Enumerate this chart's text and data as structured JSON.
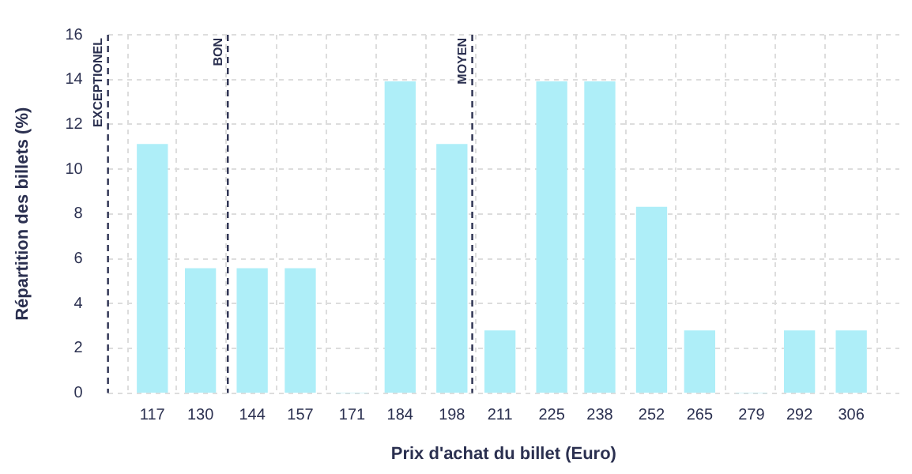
{
  "chart_data": {
    "type": "bar",
    "xlabel": "Prix d'achat du billet (Euro)",
    "ylabel": "Répartition des billets (%)",
    "x": [
      117,
      130,
      144,
      157,
      171,
      184,
      198,
      211,
      225,
      238,
      252,
      265,
      279,
      292,
      306
    ],
    "values": [
      11.1,
      5.55,
      5.55,
      5.55,
      0,
      13.9,
      11.1,
      2.78,
      13.9,
      13.9,
      8.3,
      2.78,
      0,
      2.78,
      2.78
    ],
    "color": "#aeeef8",
    "xlim": [
      105,
      319
    ],
    "xticks": [
      117,
      130,
      144,
      157,
      171,
      184,
      198,
      211,
      225,
      238,
      252,
      265,
      279,
      292,
      306
    ],
    "ylim": [
      0,
      16
    ],
    "yticks": [
      0,
      2,
      4,
      6,
      8,
      10,
      12,
      14,
      16
    ],
    "grid": true,
    "legend": false,
    "ref_lines": [
      {
        "axis": "x",
        "value": 105,
        "label": "EXCEPTIONEL",
        "color": "#2b3050",
        "line_style": "dashed"
      },
      {
        "axis": "x",
        "value": 137.4,
        "label": "BON",
        "color": "#2b3050",
        "line_style": "dashed"
      },
      {
        "axis": "x",
        "value": 203.5,
        "label": "MOYEN",
        "color": "#2b3050",
        "line_style": "dashed"
      }
    ]
  }
}
